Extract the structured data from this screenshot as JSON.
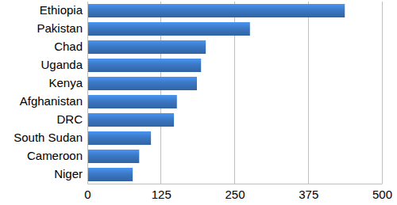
{
  "chart_data": {
    "type": "bar",
    "orientation": "horizontal",
    "categories": [
      "Ethiopia",
      "Pakistan",
      "Chad",
      "Uganda",
      "Kenya",
      "Afghanistan",
      "DRC",
      "South Sudan",
      "Cameroon",
      "Niger"
    ],
    "values": [
      437,
      276,
      201,
      193,
      186,
      152,
      147,
      108,
      88,
      77
    ],
    "color": "#3b78c4",
    "xlim": [
      0,
      500
    ],
    "xticks": [
      0,
      125,
      250,
      375,
      500
    ],
    "grid": true
  }
}
